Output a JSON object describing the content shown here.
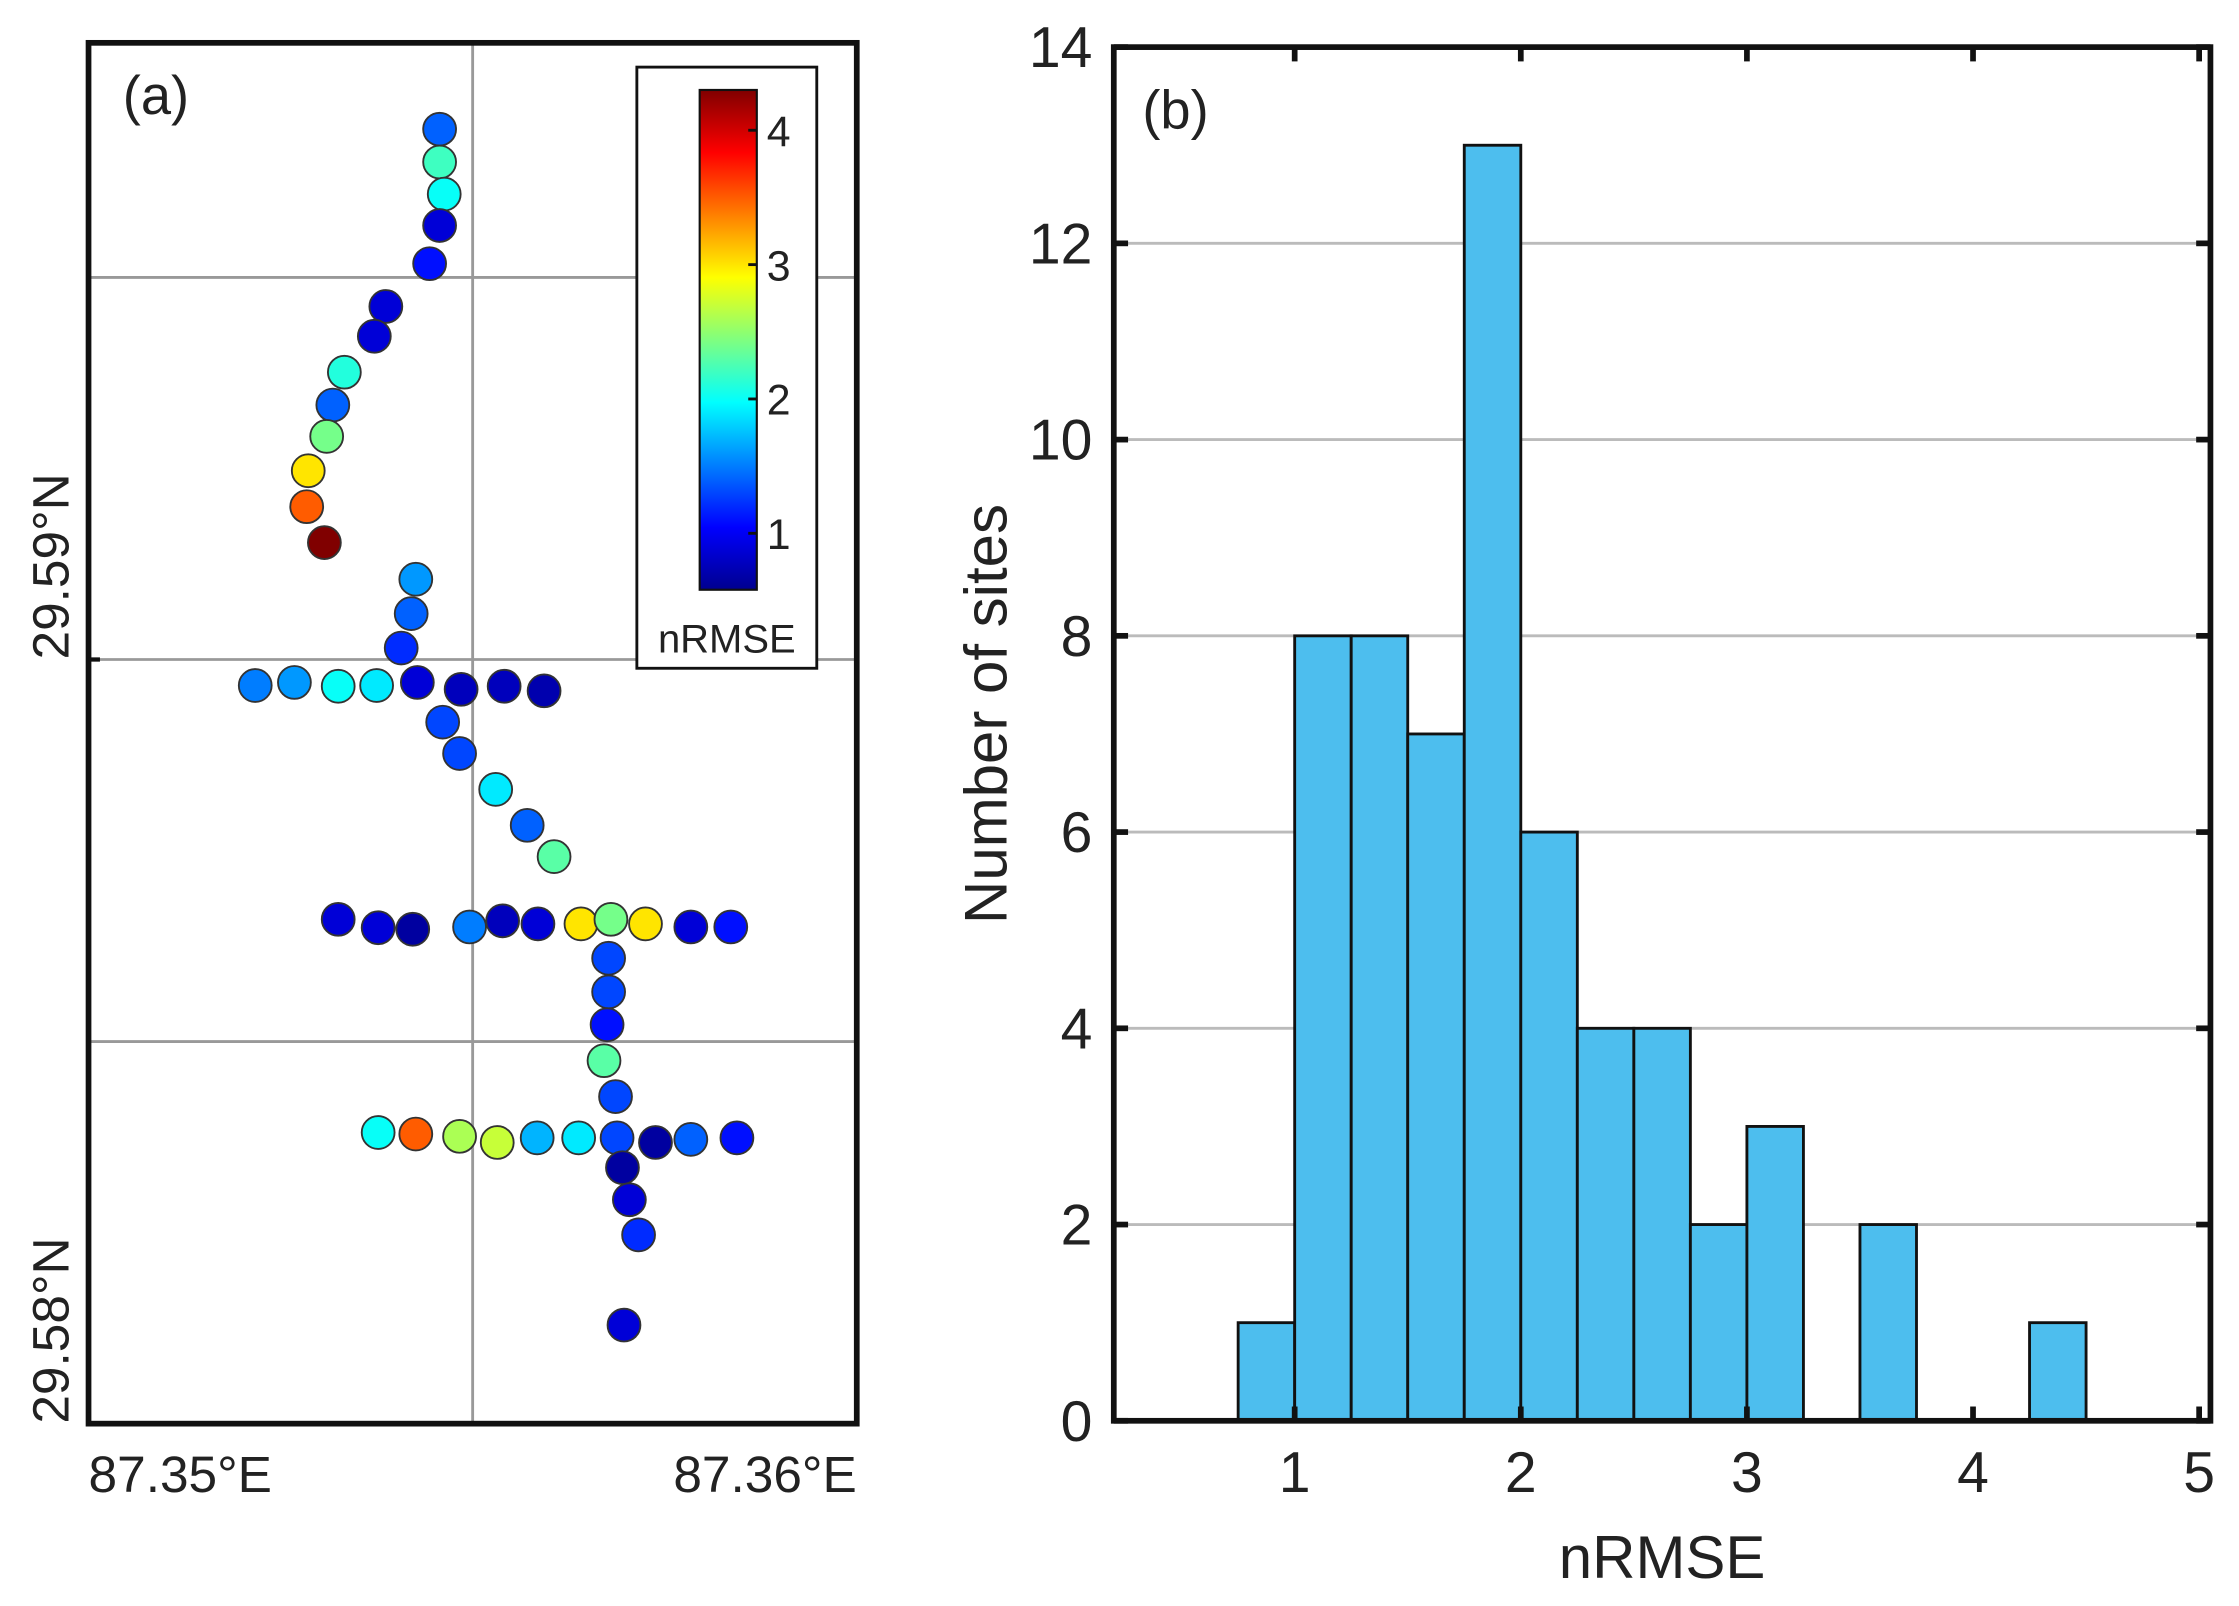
{
  "chart_data": [
    {
      "type": "scatter",
      "panel_label": "(a)",
      "x": [
        87.35457,
        87.35457,
        87.35463,
        87.35457,
        87.35444,
        87.35387,
        87.35372,
        87.35333,
        87.35318,
        87.3531,
        87.35286,
        87.35284,
        87.35307,
        87.35426,
        87.3542,
        87.35407,
        87.35217,
        87.35268,
        87.35325,
        87.35375,
        87.35428,
        87.35485,
        87.35541,
        87.35593,
        87.35461,
        87.35483,
        87.3553,
        87.35571,
        87.35606,
        87.35325,
        87.35377,
        87.35422,
        87.35496,
        87.35539,
        87.35585,
        87.35641,
        87.3568,
        87.35725,
        87.35784,
        87.35836,
        87.35677,
        87.35677,
        87.35675,
        87.35671,
        87.35686,
        87.35377,
        87.35426,
        87.35483,
        87.35532,
        87.35584,
        87.35638,
        87.35688,
        87.35738,
        87.35784,
        87.35844,
        87.35695,
        87.35704,
        87.35716,
        87.35697
      ],
      "y": [
        29.59694,
        29.59651,
        29.59609,
        29.59568,
        29.59518,
        29.59462,
        29.59423,
        29.59376,
        29.59333,
        29.59292,
        29.59247,
        29.592,
        29.59153,
        29.59105,
        29.5906,
        29.59015,
        29.58966,
        29.5897,
        29.58965,
        29.58966,
        29.5897,
        29.58961,
        29.58965,
        29.58959,
        29.58918,
        29.58877,
        29.5883,
        29.58783,
        29.58742,
        29.5866,
        29.58649,
        29.58647,
        29.5865,
        29.58658,
        29.58654,
        29.58654,
        29.5866,
        29.58654,
        29.5865,
        29.5865,
        29.58609,
        29.58565,
        29.58522,
        29.58475,
        29.58428,
        29.58381,
        29.58379,
        29.58376,
        29.58368,
        29.58374,
        29.58374,
        29.58374,
        29.58368,
        29.58372,
        29.58374,
        29.58335,
        29.58293,
        29.58247,
        29.58129
      ],
      "values": [
        1.4,
        2.2,
        2.0,
        0.9,
        1.1,
        0.9,
        0.9,
        2.1,
        1.4,
        2.4,
        3.0,
        3.5,
        4.3,
        1.6,
        1.4,
        1.2,
        1.5,
        1.6,
        2.0,
        1.9,
        0.9,
        0.8,
        0.8,
        0.75,
        1.3,
        1.3,
        1.9,
        1.4,
        2.3,
        0.9,
        0.9,
        0.7,
        1.5,
        0.8,
        0.9,
        3.0,
        2.4,
        3.0,
        0.9,
        1.1,
        1.3,
        1.3,
        1.1,
        2.3,
        1.3,
        2.0,
        3.5,
        2.6,
        2.7,
        1.7,
        1.9,
        1.3,
        0.7,
        1.4,
        1.1,
        0.7,
        0.9,
        1.2,
        0.9
      ],
      "xlim": [
        87.35,
        87.36
      ],
      "ylim": [
        29.58,
        29.59807
      ],
      "xticks": [
        {
          "value": 87.35,
          "label": "87.35°E"
        },
        {
          "value": 87.36,
          "label": "87.36°E"
        }
      ],
      "yticks": [
        {
          "value": 29.58,
          "label": "29.58°N"
        },
        {
          "value": 29.59,
          "label": "29.59°N"
        }
      ],
      "xgrid": [
        87.355
      ],
      "ygrid": [
        29.585,
        29.59,
        29.595
      ],
      "colormap": "jet",
      "colorbar": {
        "label": "nRMSE",
        "clim": [
          0.58,
          4.3
        ],
        "ticks": [
          1,
          2,
          3,
          4
        ]
      }
    },
    {
      "type": "histogram",
      "panel_label": "(b)",
      "bins": [
        0.75,
        1.0,
        1.25,
        1.5,
        1.75,
        2.0,
        2.25,
        2.5,
        2.75,
        3.0,
        3.25,
        3.5,
        3.75,
        4.0,
        4.25,
        4.5
      ],
      "counts": [
        1,
        8,
        8,
        7,
        13,
        6,
        4,
        4,
        2,
        3,
        0,
        2,
        0,
        0,
        1
      ],
      "color": "#4dbeee",
      "xlabel": "nRMSE",
      "ylabel": "Number of sites",
      "xlim": [
        0.2,
        5.05
      ],
      "ylim": [
        0,
        14
      ],
      "xticks": [
        1,
        2,
        3,
        4,
        5
      ],
      "yticks": [
        0,
        2,
        4,
        6,
        8,
        10,
        12,
        14
      ],
      "grid": true
    }
  ]
}
